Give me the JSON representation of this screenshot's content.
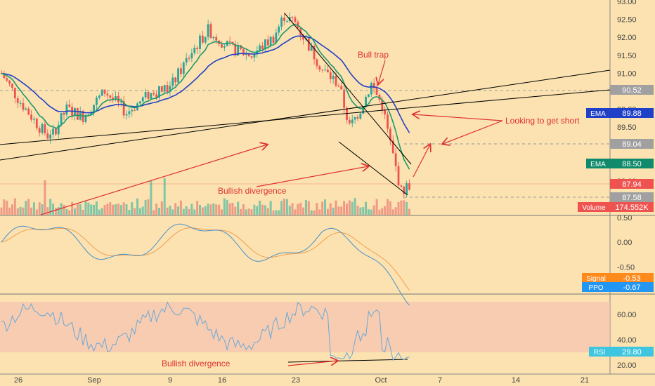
{
  "chart_data": {
    "type": "candlestick",
    "title": "",
    "panes": [
      "price",
      "ppo",
      "rsi"
    ],
    "price_axis": {
      "ticks": [
        "93.00",
        "92.50",
        "92.00",
        "91.50",
        "91.00",
        "90.50",
        "90.00",
        "89.50",
        "89.00",
        "88.50",
        "88.00"
      ],
      "range": [
        87.6,
        93.0
      ]
    },
    "ppo_axis": {
      "ticks": [
        "0.50",
        "0.00",
        "-0.50"
      ],
      "range": [
        -0.95,
        0.5
      ]
    },
    "rsi_axis": {
      "ticks": [
        "60.00",
        "40.00",
        "20.00"
      ],
      "range": [
        15,
        78
      ],
      "band": [
        30,
        70
      ]
    },
    "x_ticks": [
      "26",
      "Sep",
      "9",
      "16",
      "23",
      "Oct",
      "7",
      "14",
      "21"
    ],
    "price_labels": [
      {
        "name": "current-price",
        "value": "90.52",
        "color": "#a0a0a0"
      },
      {
        "name": "ema-slow",
        "label": "EMA",
        "value": "89.88",
        "color": "#2040c8"
      },
      {
        "name": "level",
        "value": "89.04",
        "color": "#a0a0a0"
      },
      {
        "name": "ema-fast",
        "label": "EMA",
        "value": "88.50",
        "color": "#0f8a6a"
      },
      {
        "name": "last-close",
        "value": "87.94",
        "color": "#ef5350"
      },
      {
        "name": "level-low",
        "value": "87.58",
        "color": "#a0a0a0"
      },
      {
        "name": "volume",
        "label": "Volume",
        "value": "174.552K",
        "color": "#ef5350"
      }
    ],
    "ppo_labels": [
      {
        "name": "signal",
        "label": "Signal",
        "value": "-0.53",
        "color": "#ff8a1c"
      },
      {
        "name": "ppo",
        "label": "PPO",
        "value": "-0.67",
        "color": "#2196f3"
      }
    ],
    "rsi_labels": [
      {
        "name": "rsi",
        "label": "RSI",
        "value": "29.80",
        "color": "#3ec6e0"
      }
    ],
    "annotations": {
      "bull_trap": "Bull trap",
      "looking_short": "Looking to get short",
      "bull_div_price": "Bullish divergence",
      "bull_div_rsi": "Bullish divergence"
    },
    "colors": {
      "up": "#26a69a",
      "down": "#ef5350",
      "ema_fast": "#1b9a6e",
      "ema_slow": "#2040c8",
      "ppo": "#4a90c8",
      "signal": "#f0a050",
      "rsi": "#6aaad8",
      "annotation": "#e03030",
      "trendline": "#000000"
    }
  }
}
